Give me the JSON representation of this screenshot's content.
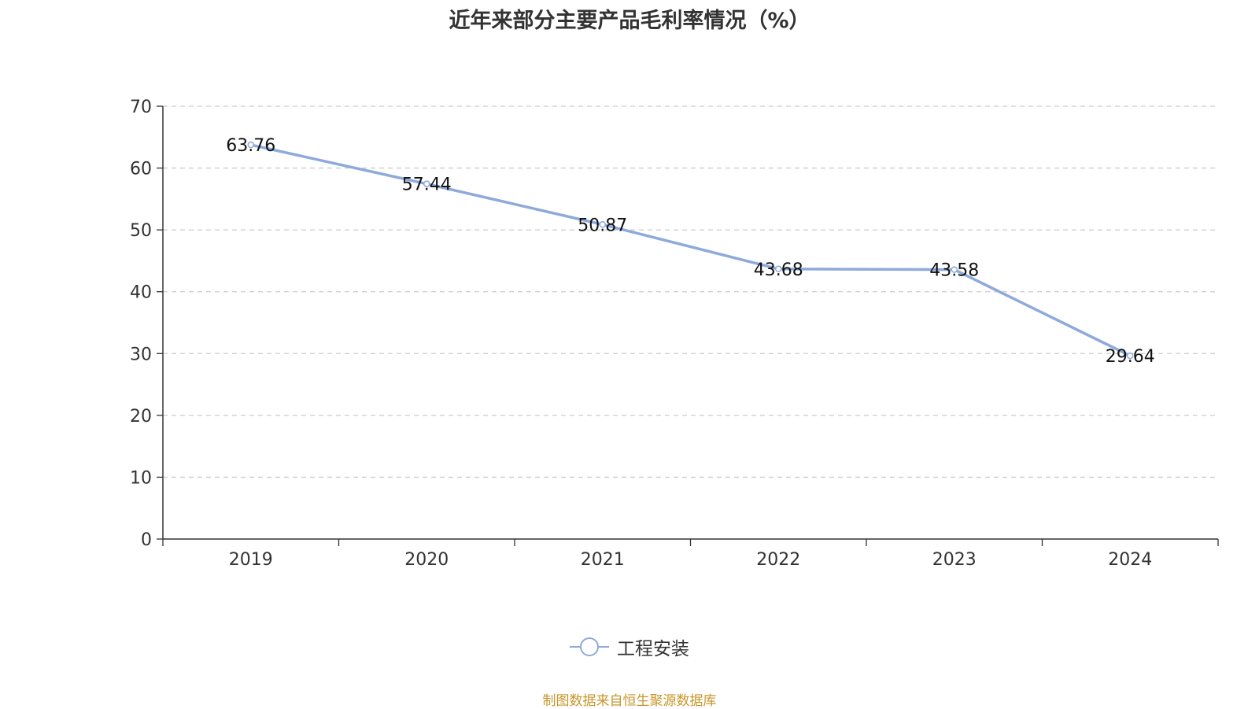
{
  "chart_data": {
    "type": "line",
    "title": "近年来部分主要产品毛利率情况（%）",
    "categories": [
      "2019",
      "2020",
      "2021",
      "2022",
      "2023",
      "2024"
    ],
    "series": [
      {
        "name": "工程安装",
        "values": [
          63.76,
          57.44,
          50.87,
          43.68,
          43.58,
          29.64
        ],
        "color": "#8eaadb"
      }
    ],
    "data_labels": [
      "63.76",
      "57.44",
      "50.87",
      "43.68",
      "43.58",
      "29.64"
    ],
    "ylim": [
      0,
      70
    ],
    "yticks": [
      0,
      10,
      20,
      30,
      40,
      50,
      60,
      70
    ],
    "grid": true,
    "legend_position": "bottom"
  },
  "source_note": "制图数据来自恒生聚源数据库"
}
